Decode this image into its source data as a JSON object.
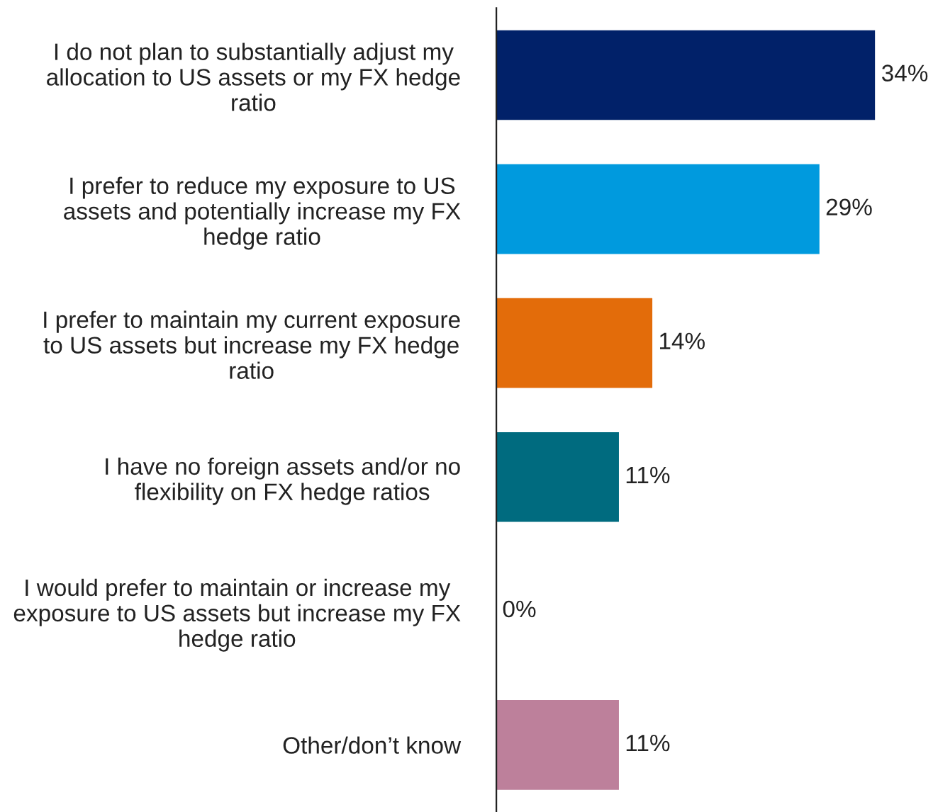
{
  "chart_data": {
    "type": "bar",
    "orientation": "horizontal",
    "categories": [
      "I do not plan to substantially adjust my\nallocation to US assets or my FX hedge\nratio",
      "I prefer to reduce my exposure to US\nassets and potentially increase my FX\nhedge ratio",
      "I prefer to maintain my current exposure\nto US assets but increase my FX hedge\nratio",
      "I have no foreign assets and/or no\nflexibility on FX hedge ratios",
      "I would prefer to maintain or increase my\nexposure to US assets but increase my FX\nhedge ratio",
      "Other/don’t know"
    ],
    "values": [
      34,
      29,
      14,
      11,
      0,
      11
    ],
    "colors": [
      "#012169",
      "#009ade",
      "#e36c0a",
      "#006b7f",
      "#7f7f7f",
      "#bd809b"
    ],
    "value_labels": [
      "34%",
      "29%",
      "14%",
      "11%",
      "0%",
      "11%"
    ],
    "tick_labels": "y",
    "grid": false,
    "legend": false
  }
}
